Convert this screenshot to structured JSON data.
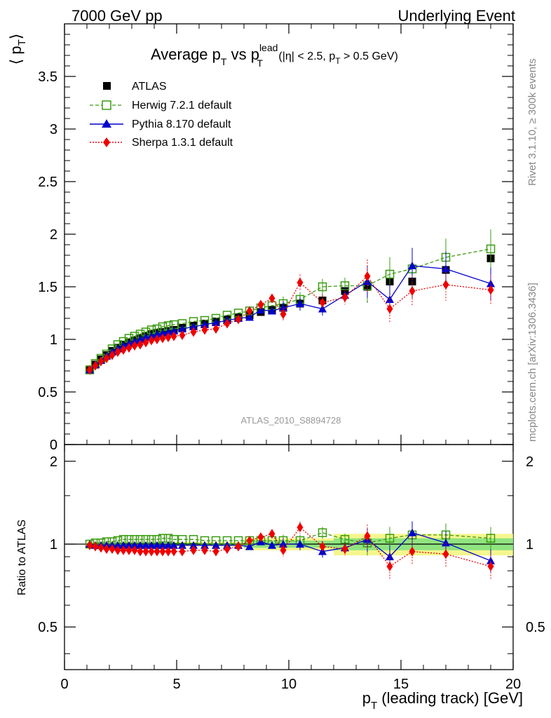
{
  "header": {
    "left": "7000 GeV pp",
    "right": "Underlying Event"
  },
  "side_labels": {
    "rivet": "Rivet 3.1.10, ≥ 300k events",
    "mcplots": "mcplots.cern.ch [arXiv:1306.3436]"
  },
  "analysis_id": "ATLAS_2010_S8894728",
  "chart_data": {
    "type": "scatter",
    "title_main": "Average p",
    "title_sub_T": "T",
    "title_vs": " vs p",
    "title_sup_lead": "lead",
    "title_cuts_a": " (|η| < 2.5, p",
    "title_cuts_b": " > 0.5 GeV)",
    "ylabel_top": "⟨ p",
    "ylabel_top_sub": "T",
    "ylabel_top_close": "⟩",
    "ylabel_bottom": "Ratio to ATLAS",
    "xlabel_main": "p",
    "xlabel_sub": "T",
    "xlabel_rest": " (leading track) [GeV]",
    "xlim": [
      0,
      20
    ],
    "ylim_top": [
      0,
      4
    ],
    "ylim_bottom": [
      0.35,
      2.3
    ],
    "x_ticks": [
      "0",
      "5",
      "10",
      "15",
      "20"
    ],
    "y_ticks_top": [
      "0",
      "0.5",
      "1",
      "1.5",
      "2",
      "2.5",
      "3",
      "3.5"
    ],
    "y_ticks_bottom": [
      "0.5",
      "1",
      "2"
    ],
    "x": [
      1.125,
      1.375,
      1.625,
      1.875,
      2.125,
      2.375,
      2.625,
      2.875,
      3.125,
      3.375,
      3.625,
      3.875,
      4.125,
      4.375,
      4.625,
      4.875,
      5.25,
      5.75,
      6.25,
      6.75,
      7.25,
      7.75,
      8.25,
      8.75,
      9.25,
      9.75,
      10.5,
      11.5,
      12.5,
      13.5,
      14.5,
      15.5,
      17.0,
      19.0
    ],
    "series": [
      {
        "name": "ATLAS",
        "color": "#000000",
        "values": [
          0.71,
          0.76,
          0.81,
          0.85,
          0.89,
          0.92,
          0.95,
          0.97,
          0.99,
          1.01,
          1.03,
          1.05,
          1.06,
          1.07,
          1.08,
          1.09,
          1.11,
          1.13,
          1.15,
          1.17,
          1.19,
          1.21,
          1.23,
          1.26,
          1.28,
          1.3,
          1.34,
          1.37,
          1.46,
          1.5,
          1.55,
          1.55,
          1.66,
          1.77
        ],
        "ratio": []
      },
      {
        "name": "Herwig 7.2.1 default",
        "color": "#3a9c10",
        "values": [
          0.71,
          0.77,
          0.82,
          0.86,
          0.91,
          0.95,
          0.98,
          1.01,
          1.03,
          1.05,
          1.07,
          1.09,
          1.1,
          1.12,
          1.13,
          1.14,
          1.15,
          1.17,
          1.18,
          1.2,
          1.23,
          1.25,
          1.27,
          1.3,
          1.32,
          1.34,
          1.38,
          1.5,
          1.51,
          1.51,
          1.62,
          1.67,
          1.78,
          1.86
        ],
        "ratio": [
          1.0,
          1.01,
          1.01,
          1.02,
          1.02,
          1.03,
          1.04,
          1.04,
          1.04,
          1.04,
          1.04,
          1.04,
          1.04,
          1.05,
          1.05,
          1.04,
          1.04,
          1.04,
          1.03,
          1.03,
          1.03,
          1.03,
          1.03,
          1.03,
          1.03,
          1.03,
          1.03,
          1.1,
          1.04,
          1.01,
          1.05,
          1.08,
          1.08,
          1.05
        ]
      },
      {
        "name": "Pythia 8.170 default",
        "color": "#0000cc",
        "values": [
          0.71,
          0.76,
          0.8,
          0.84,
          0.88,
          0.91,
          0.94,
          0.96,
          0.98,
          1.0,
          1.02,
          1.03,
          1.05,
          1.06,
          1.07,
          1.08,
          1.1,
          1.12,
          1.14,
          1.16,
          1.18,
          1.2,
          1.21,
          1.28,
          1.27,
          1.3,
          1.34,
          1.29,
          1.42,
          1.55,
          1.38,
          1.7,
          1.67,
          1.53
        ],
        "ratio": [
          1.0,
          0.99,
          0.99,
          0.99,
          0.99,
          0.99,
          0.99,
          0.99,
          0.99,
          0.99,
          0.99,
          0.99,
          0.99,
          0.99,
          0.99,
          0.99,
          0.99,
          0.99,
          0.99,
          0.99,
          0.99,
          0.99,
          0.98,
          1.02,
          0.99,
          1.0,
          1.0,
          0.94,
          0.97,
          1.04,
          0.9,
          1.1,
          1.01,
          0.87
        ]
      },
      {
        "name": "Sherpa 1.3.1 default",
        "color": "#ee0000",
        "values": [
          0.71,
          0.75,
          0.79,
          0.82,
          0.85,
          0.88,
          0.9,
          0.92,
          0.94,
          0.95,
          0.97,
          0.99,
          1.0,
          1.01,
          1.02,
          1.03,
          1.04,
          1.07,
          1.09,
          1.1,
          1.15,
          1.19,
          1.27,
          1.33,
          1.39,
          1.24,
          1.54,
          1.35,
          1.4,
          1.6,
          1.29,
          1.46,
          1.52,
          1.47
        ],
        "ratio": [
          0.99,
          0.98,
          0.97,
          0.96,
          0.96,
          0.95,
          0.95,
          0.95,
          0.95,
          0.94,
          0.94,
          0.94,
          0.94,
          0.94,
          0.94,
          0.94,
          0.94,
          0.95,
          0.95,
          0.94,
          0.96,
          0.98,
          1.03,
          1.06,
          1.09,
          0.95,
          1.15,
          0.98,
          0.96,
          1.07,
          0.83,
          0.94,
          0.92,
          0.83
        ]
      }
    ],
    "legend_position": "top-left"
  }
}
